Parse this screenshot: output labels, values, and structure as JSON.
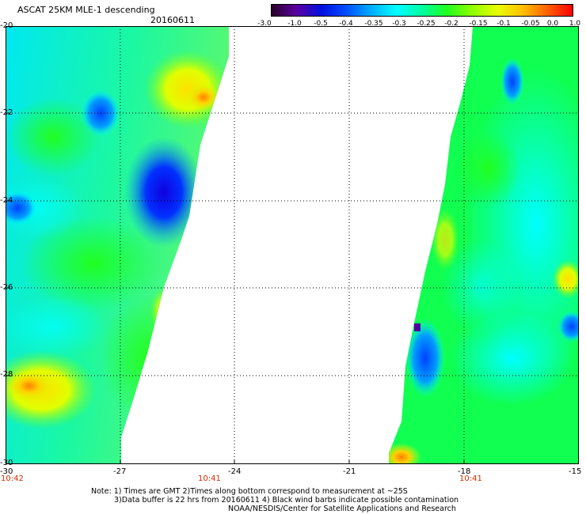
{
  "header": {
    "title": "ASCAT 25KM MLE-1 descending",
    "date": "20160611"
  },
  "colorbar": {
    "labels": [
      "-3.0",
      "-1.0",
      "-0.5",
      "-0.4",
      "-0.35",
      "-0.3",
      "-0.25",
      "-0.2",
      "-0.15",
      "-0.1",
      "-0.05",
      "0.0",
      "1.0"
    ],
    "colors": [
      "#2a0028",
      "#5a00a0",
      "#0010e0",
      "#0050ff",
      "#00b0ff",
      "#00ffff",
      "#00ffa0",
      "#20ff20",
      "#90ff00",
      "#e8ff00",
      "#ffc000",
      "#ff6000",
      "#ff0000"
    ]
  },
  "axes": {
    "lon_ticks": [
      "-30",
      "-27",
      "-24",
      "-21",
      "-18",
      "-15"
    ],
    "lat_ticks": [
      "-20",
      "-22",
      "-24",
      "-26",
      "-28",
      "-30"
    ],
    "time_labels": [
      "10:42",
      "10:41",
      "10:41"
    ]
  },
  "notes": [
    "Note: 1) Times are GMT 2)Times along bottom correspond to measurement at ~25S",
    "3)Data buffer is 22 hrs from 20160611 4) Black wind barbs indicate possible contamination",
    "NOAA/NESDIS/Center for Satellite Applications and Research"
  ]
}
